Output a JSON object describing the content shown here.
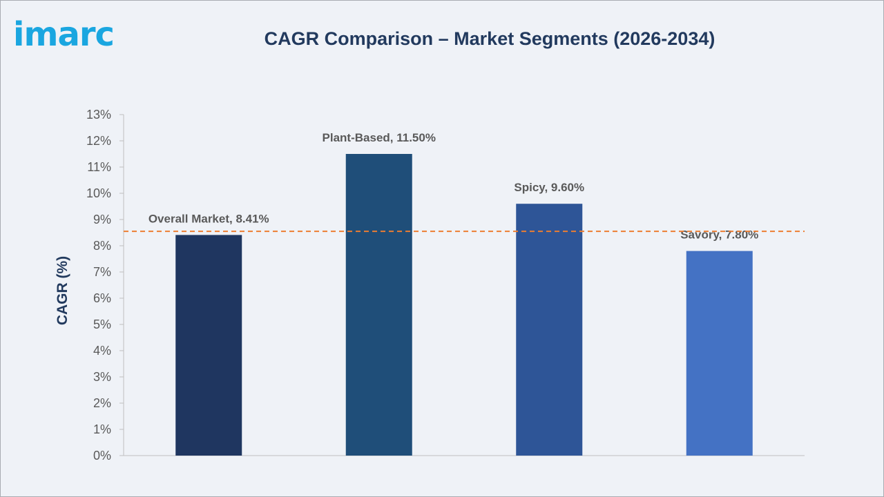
{
  "logo": {
    "text": "imarc",
    "color": "#1aa6e0"
  },
  "title": "CAGR Comparison – Market Segments (2026-2034)",
  "chart_data": {
    "type": "bar",
    "title": "CAGR Comparison – Market Segments (2026-2034)",
    "xlabel": "",
    "ylabel": "CAGR (%)",
    "ylim": [
      0,
      13
    ],
    "ytick_step": 1,
    "ytick_format": "percent",
    "categories": [
      "Overall Market",
      "Plant-Based",
      "Spicy",
      "Savory"
    ],
    "values": [
      8.41,
      11.5,
      9.6,
      7.8
    ],
    "data_labels": [
      "Overall Market, 8.41%",
      "Plant-Based, 11.50%",
      "Spicy, 9.60%",
      "Savory, 7.80%"
    ],
    "colors": [
      "#1f3660",
      "#1f4e79",
      "#2e5597",
      "#4472c4"
    ],
    "reference_line": {
      "value": 8.55,
      "color": "#ed7d31",
      "style": "dashed"
    },
    "grid": false,
    "legend": "none"
  }
}
